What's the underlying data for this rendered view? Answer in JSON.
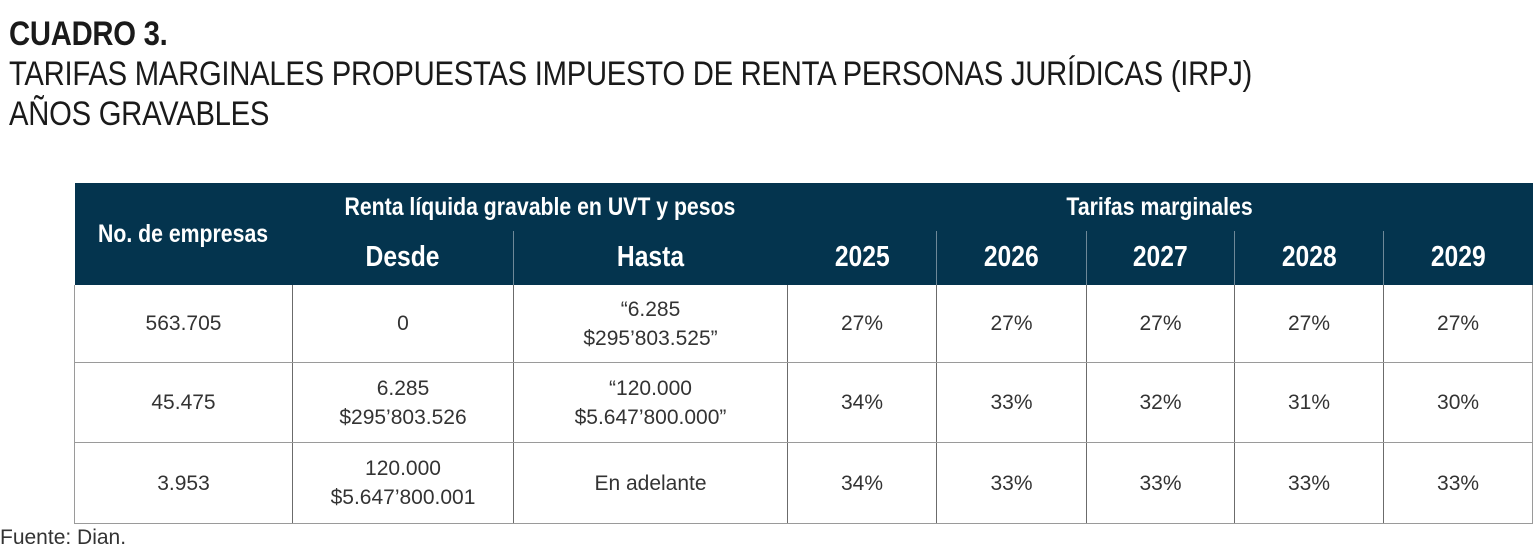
{
  "title": {
    "line1": "CUADRO 3.",
    "line2": "TARIFAS MARGINALES PROPUESTAS IMPUESTO DE RENTA PERSONAS JURÍDICAS (IRPJ)",
    "line3": "AÑOS GRAVABLES"
  },
  "table": {
    "header": {
      "companies": "No. de empresas",
      "income_group": "Renta líquida gravable en UVT y pesos",
      "rates_group": "Tarifas marginales",
      "from": "Desde",
      "to": "Hasta",
      "years": [
        "2025",
        "2026",
        "2027",
        "2028",
        "2029"
      ]
    },
    "rows": [
      {
        "companies": "563.705",
        "from": [
          "0"
        ],
        "to": [
          "“6.285",
          "$295’803.525”"
        ],
        "rates": [
          "27%",
          "27%",
          "27%",
          "27%",
          "27%"
        ]
      },
      {
        "companies": "45.475",
        "from": [
          "6.285",
          "$295’803.526"
        ],
        "to": [
          "“120.000",
          "$5.647’800.000”"
        ],
        "rates": [
          "34%",
          "33%",
          "32%",
          "31%",
          "30%"
        ]
      },
      {
        "companies": "3.953",
        "from": [
          "120.000",
          "$5.647’800.001"
        ],
        "to": [
          "En adelante"
        ],
        "rates": [
          "34%",
          "33%",
          "33%",
          "33%",
          "33%"
        ]
      }
    ]
  },
  "source": "Fuente: Dian.",
  "colors": {
    "header_bg": "#04344e",
    "header_text": "#ffffff"
  }
}
